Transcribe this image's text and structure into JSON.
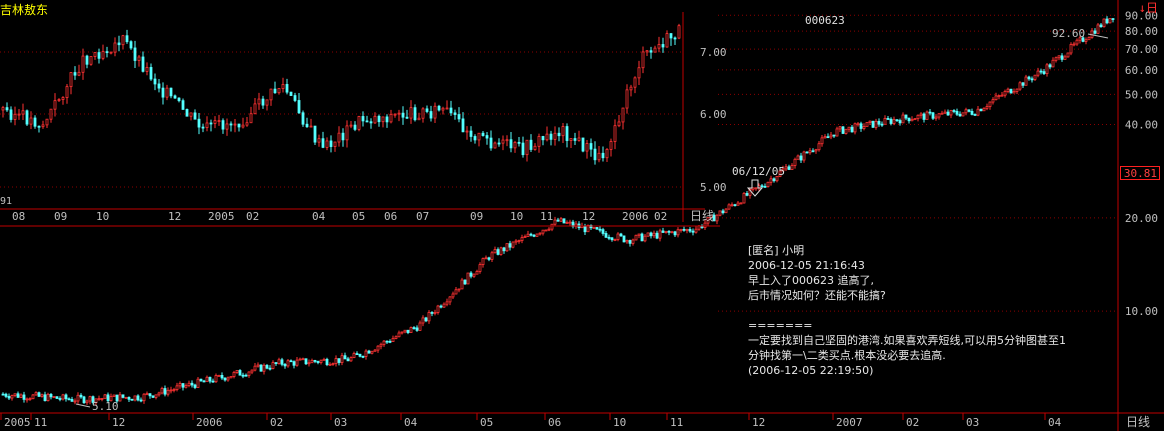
{
  "app": {
    "stock_name": "吉林敖东",
    "stock_code": "000623",
    "period_marker": "↓日",
    "tag_value": "30.81"
  },
  "colors": {
    "up": "#ff3232",
    "down": "#54ffff",
    "grid": "#8b0000",
    "axis": "#c00000",
    "text": "#c0c0c0"
  },
  "inset_chart": {
    "y_ticks": [
      "7.00",
      "6.00",
      "5.00"
    ],
    "x_labels": [
      "08",
      "09",
      "10",
      "12",
      "2005",
      "02",
      "04",
      "05",
      "06",
      "07",
      "09",
      "10",
      "11",
      "12",
      "2006",
      "02"
    ],
    "left_value": "91",
    "period": "日线"
  },
  "chart_data": [
    {
      "type": "candlestick",
      "title": "000623",
      "y_scale": "log",
      "ylim": [
        4.8,
        95
      ],
      "y_ticks": [
        "90.00",
        "80.00",
        "70.00",
        "60.00",
        "50.00",
        "40.00",
        "20.00",
        "10.00"
      ],
      "x_labels": [
        "2005",
        "11",
        "12",
        "2006",
        "02",
        "03",
        "04",
        "05",
        "06",
        "10",
        "11",
        "12",
        "2007",
        "02",
        "03",
        "04"
      ],
      "period": "日线",
      "annotations": [
        {
          "text": "92.60",
          "note": "high"
        },
        {
          "text": "5.10",
          "note": "low"
        },
        {
          "text": "06/12/05",
          "note": "arrow"
        }
      ],
      "x": [
        "2005-10",
        "2005-11",
        "2005-12",
        "2006-01",
        "2006-02",
        "2006-03",
        "2006-04",
        "2006-05",
        "2006-06",
        "2006-10",
        "2006-11",
        "2006-12",
        "2007-01",
        "2007-02",
        "2007-03",
        "2007-04",
        "2007-05"
      ],
      "values": [
        5.4,
        5.2,
        5.3,
        6.0,
        6.8,
        7.0,
        9.0,
        15.0,
        19.5,
        17.0,
        18.5,
        26.0,
        38.0,
        42.0,
        44.0,
        60.0,
        90.0
      ]
    }
  ],
  "comment": {
    "author": "[匿名] 小明",
    "time": "2006-12-05 21:16:43",
    "q1": "早上入了000623 追高了,",
    "q2": "后市情况如何？还能不能搞?",
    "sep": "=======",
    "a1": "一定要找到自己坚固的港湾.如果喜欢弄短线,可以用5分钟图甚至1",
    "a2": "分钟找第一\\二类买点.根本没必要去追高.",
    "a3": "(2006-12-05 22:19:50)"
  }
}
